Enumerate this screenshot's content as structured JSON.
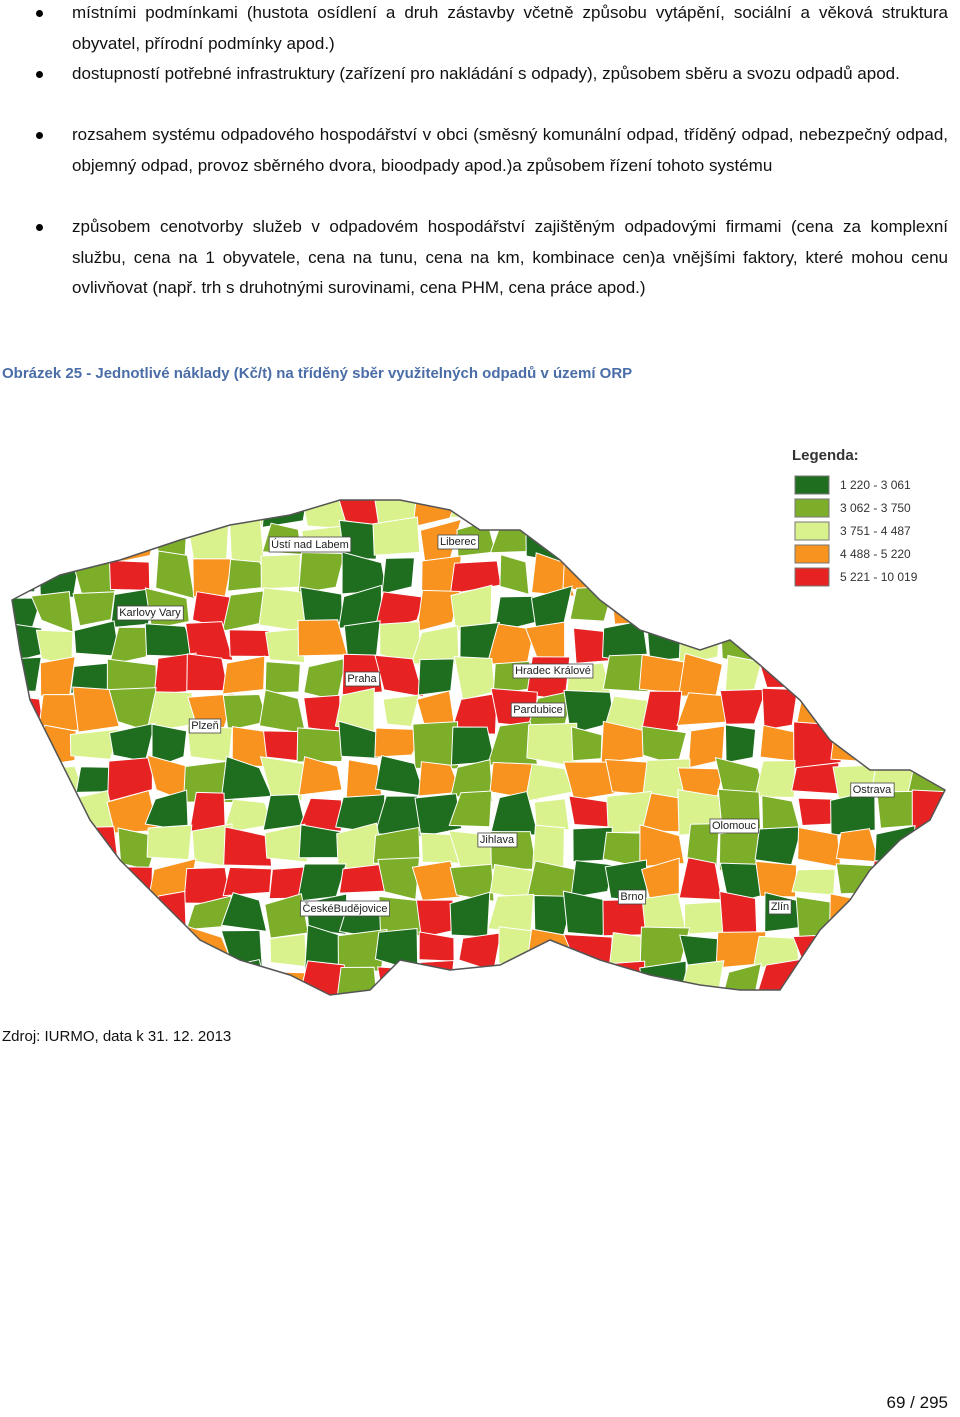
{
  "bullets": [
    "místními podmínkami (hustota osídlení a druh zástavby včetně způsobu vytápění, sociální a věková struktura obyvatel, přírodní podmínky apod.)",
    "dostupností potřebné infrastruktury (zařízení pro nakládání s odpady), způsobem sběru a svozu odpadů apod.",
    "rozsahem systému odpadového hospodářství v obci (směsný komunální odpad, tříděný odpad, nebezpečný odpad, objemný odpad, provoz sběrného dvora, bioodpady apod.)a způsobem řízení tohoto systému",
    "způsobem cenotvorby služeb v odpadovém hospodářství zajištěným odpadovými firmami (cena za komplexní službu, cena na 1 obyvatele, cena na tunu, cena na km, kombinace cen)a vnějšími faktory, které mohou cenu ovlivňovat (např. trh s druhotnými surovinami, cena PHM, cena práce apod.)"
  ],
  "figure": {
    "caption": "Obrázek 25 - Jednotlivé náklady (Kč/t) na tříděný sběr využitelných odpadů v území ORP",
    "legend": {
      "title": "Legenda:",
      "items": [
        {
          "label": "1 220 - 3 061",
          "color": "#1f6e1f"
        },
        {
          "label": "3 062 - 3 750",
          "color": "#7cae2a"
        },
        {
          "label": "3 751 - 4 487",
          "color": "#d9f28e"
        },
        {
          "label": "4 488 - 5 220",
          "color": "#f7931e"
        },
        {
          "label": "5 221 - 10 019",
          "color": "#e62222"
        }
      ]
    },
    "cities": [
      "Ústí nad Labem",
      "Liberec",
      "Karlovy Vary",
      "Praha",
      "Hradec Králové",
      "Pardubice",
      "Plzeň",
      "Olomouc",
      "Ostrava",
      "Jihlava",
      "Brno",
      "Zlín",
      "ČeskéBudějovice"
    ]
  },
  "source": "Zdroj: IURMO, data k 31. 12. 2013",
  "page_number": "69 / 295"
}
